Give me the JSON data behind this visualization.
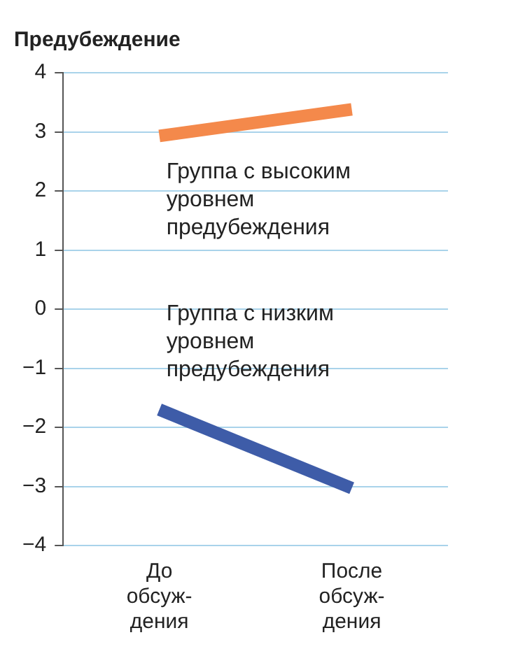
{
  "chart_data": {
    "type": "line",
    "title": "Предубеждение",
    "categories": [
      "До\nобсуж-\nдения",
      "После\nобсуж-\nдения"
    ],
    "series": [
      {
        "name": "Группа с высоким\nуровнем\nпредубеждения",
        "color": "#f4894b",
        "values": [
          2.93,
          3.38
        ]
      },
      {
        "name": "Группа с низким\nуровнем\nпредубеждения",
        "color": "#3e5ca8",
        "values": [
          -1.7,
          -3.03
        ]
      }
    ],
    "ylim": [
      -4,
      4
    ],
    "yticks": [
      4,
      3,
      2,
      1,
      0,
      {
        "value": -1,
        "label": "−1"
      },
      {
        "value": -2,
        "label": "−2"
      },
      {
        "value": -3,
        "label": "−3"
      },
      {
        "value": -4,
        "label": "−4"
      }
    ],
    "grid": "y",
    "legend": false,
    "marker": "none",
    "line_style": "solid"
  }
}
